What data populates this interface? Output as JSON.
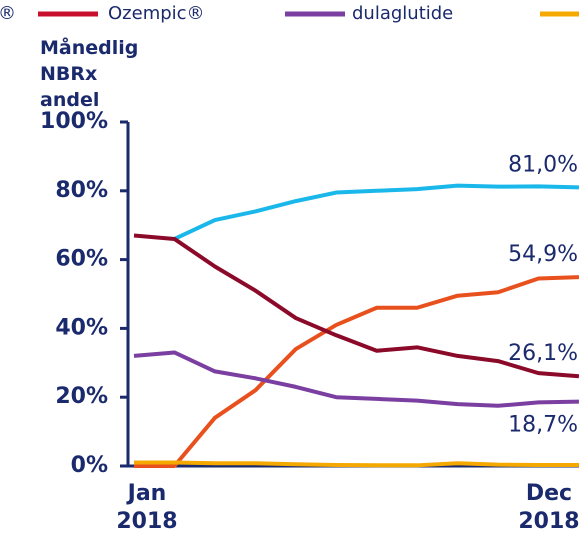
{
  "chart_data": {
    "type": "line",
    "ylabel": "Månedlig NBRx andel",
    "legend": [
      {
        "label": "®",
        "color": null
      },
      {
        "label": "Ozempic®",
        "color": "#c8102e"
      },
      {
        "label": "dulaglutide",
        "color": "#7a3fa0"
      },
      {
        "label": null,
        "color": "#f5a800"
      }
    ],
    "categories": [
      "Jan 2018",
      null,
      null,
      null,
      null,
      null,
      null,
      null,
      null,
      null,
      null,
      "Dec 2018"
    ],
    "ylim": [
      0,
      100
    ],
    "yticks": [
      {
        "value": 0,
        "label": "0%"
      },
      {
        "value": 20,
        "label": "20%"
      },
      {
        "value": 40,
        "label": "40%"
      },
      {
        "value": 60,
        "label": "60%"
      },
      {
        "value": 80,
        "label": "80%"
      },
      {
        "value": 100,
        "label": "100%"
      }
    ],
    "series": [
      {
        "name": null,
        "color": "#1ab7ea",
        "values": [
          null,
          66,
          71.5,
          74,
          77,
          79.5,
          80,
          80.5,
          81.5,
          81.2,
          81.3,
          81.0
        ],
        "value_labels": [
          null,
          null,
          null,
          null,
          null,
          null,
          null,
          null,
          null,
          null,
          null,
          "81,0%"
        ]
      },
      {
        "name": null,
        "color": "#e8501e",
        "values": [
          0,
          0,
          14,
          22,
          34,
          41,
          46,
          46,
          49.5,
          50.5,
          54.5,
          54.9
        ],
        "value_labels": [
          null,
          null,
          null,
          null,
          null,
          null,
          null,
          null,
          null,
          null,
          null,
          "54,9%"
        ]
      },
      {
        "name": null,
        "color": "#8b0a2a",
        "values": [
          67,
          66,
          58,
          51,
          43,
          38,
          33.5,
          34.5,
          32,
          30.5,
          27,
          26.1
        ],
        "value_labels": [
          null,
          null,
          null,
          null,
          null,
          null,
          null,
          null,
          null,
          null,
          null,
          "26,1%"
        ]
      },
      {
        "name": null,
        "color": "#7a3fa0",
        "values": [
          32,
          33,
          27.5,
          25.5,
          23,
          20,
          19.5,
          19,
          18,
          17.5,
          18.5,
          18.7
        ],
        "value_labels": [
          null,
          null,
          null,
          null,
          null,
          null,
          null,
          null,
          null,
          null,
          null,
          "18,7%"
        ]
      },
      {
        "name": null,
        "color": "#f5a800",
        "values": [
          1,
          1,
          0.8,
          0.8,
          0.5,
          0.3,
          0.2,
          0.2,
          0.8,
          0.4,
          0.3,
          0.3
        ]
      }
    ]
  }
}
